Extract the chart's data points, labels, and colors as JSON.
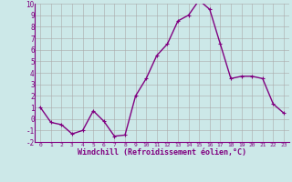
{
  "x": [
    0,
    1,
    2,
    3,
    4,
    5,
    6,
    7,
    8,
    9,
    10,
    11,
    12,
    13,
    14,
    15,
    16,
    17,
    18,
    19,
    20,
    21,
    22,
    23
  ],
  "y": [
    1.0,
    -0.3,
    -0.5,
    -1.3,
    -1.0,
    0.7,
    -0.2,
    -1.5,
    -1.4,
    2.0,
    3.5,
    5.5,
    6.5,
    8.5,
    9.0,
    10.3,
    9.5,
    6.5,
    3.5,
    3.7,
    3.7,
    3.5,
    1.3,
    0.5
  ],
  "line_color": "#800080",
  "marker_color": "#800080",
  "bg_color": "#cce8e8",
  "grid_color": "#aaaaaa",
  "xlabel": "Windchill (Refroidissement éolien,°C)",
  "xlabel_color": "#800080",
  "tick_color": "#800080",
  "ylim": [
    -2,
    10
  ],
  "xlim": [
    -0.5,
    23.5
  ],
  "yticks": [
    -2,
    -1,
    0,
    1,
    2,
    3,
    4,
    5,
    6,
    7,
    8,
    9,
    10
  ],
  "xticks": [
    0,
    1,
    2,
    3,
    4,
    5,
    6,
    7,
    8,
    9,
    10,
    11,
    12,
    13,
    14,
    15,
    16,
    17,
    18,
    19,
    20,
    21,
    22,
    23
  ],
  "marker_size": 2.5,
  "line_width": 1.0,
  "fig_width": 3.2,
  "fig_height": 2.0,
  "dpi": 100
}
